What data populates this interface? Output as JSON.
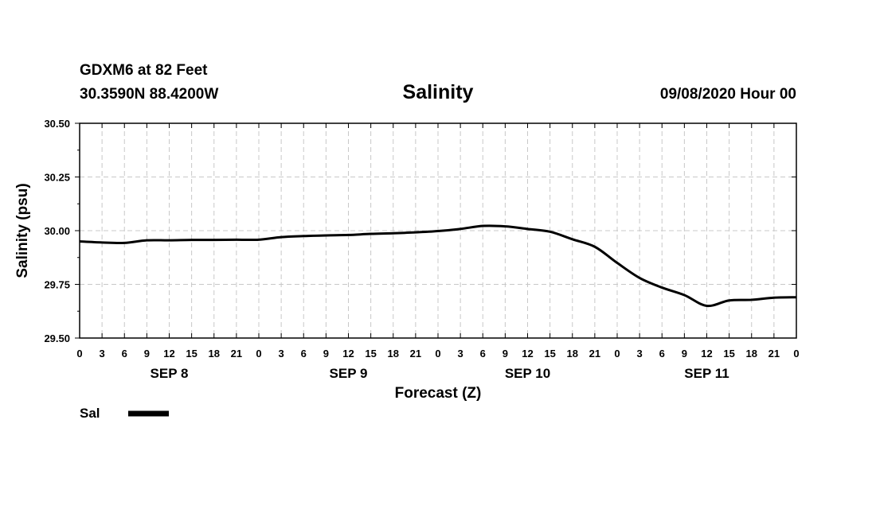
{
  "header": {
    "station": "GDXM6 at 82 Feet",
    "coords": "30.3590N 88.4200W",
    "datetime": "09/08/2020 Hour 00"
  },
  "legend": {
    "label": "Sal",
    "color": "#000000"
  },
  "chart_data": {
    "type": "line",
    "title": "Salinity",
    "xlabel": "Forecast (Z)",
    "ylabel": "Salinity (psu)",
    "ylim": [
      29.5,
      30.5
    ],
    "yticks": [
      "30.50",
      "30.25",
      "30.00",
      "29.75",
      "29.50"
    ],
    "ytick_values": [
      30.5,
      30.25,
      30.0,
      29.75,
      29.5
    ],
    "xlim_hours": [
      0,
      96
    ],
    "hour_tick_labels": [
      "0",
      "3",
      "6",
      "9",
      "12",
      "15",
      "18",
      "21",
      "0",
      "3",
      "6",
      "9",
      "12",
      "15",
      "18",
      "21",
      "0",
      "3",
      "6",
      "9",
      "12",
      "15",
      "18",
      "21",
      "0",
      "3",
      "6",
      "9",
      "12",
      "15",
      "18",
      "21",
      "0"
    ],
    "day_labels": [
      {
        "label": "SEP 8",
        "hour": 12
      },
      {
        "label": "SEP 9",
        "hour": 36
      },
      {
        "label": "SEP 10",
        "hour": 60
      },
      {
        "label": "SEP 11",
        "hour": 84
      }
    ],
    "series": [
      {
        "name": "Sal",
        "color": "#000000",
        "x": [
          0,
          3,
          6,
          9,
          12,
          15,
          18,
          21,
          24,
          27,
          30,
          33,
          36,
          39,
          42,
          45,
          48,
          51,
          54,
          57,
          60,
          63,
          66,
          69,
          72,
          75,
          78,
          81,
          84,
          87,
          90,
          93,
          96
        ],
        "values": [
          29.95,
          29.945,
          29.943,
          29.955,
          29.955,
          29.957,
          29.957,
          29.958,
          29.958,
          29.97,
          29.975,
          29.978,
          29.98,
          29.985,
          29.988,
          29.992,
          29.998,
          30.008,
          30.022,
          30.02,
          30.008,
          29.995,
          29.96,
          29.925,
          29.85,
          29.78,
          29.735,
          29.7,
          29.65,
          29.675,
          29.678,
          29.688,
          29.69
        ]
      }
    ]
  }
}
